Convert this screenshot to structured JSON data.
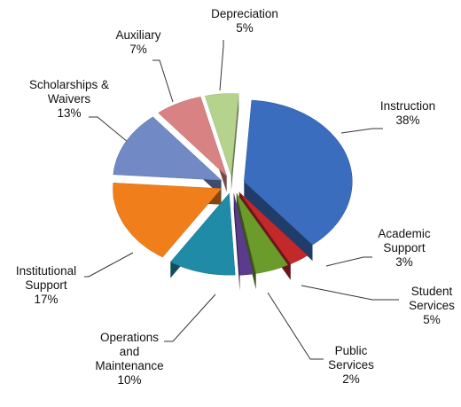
{
  "chart_data": {
    "type": "pie",
    "categories": [
      "Instruction",
      "Academic Support",
      "Student Services",
      "Public Services",
      "Operations and Maintenance",
      "Institutional Support",
      "Scholarships & Waivers",
      "Auxiliary",
      "Depreciation"
    ],
    "values": [
      38,
      3,
      5,
      2,
      10,
      17,
      13,
      7,
      5
    ],
    "value_labels": [
      "38%",
      "3%",
      "5%",
      "2%",
      "10%",
      "17%",
      "13%",
      "7%",
      "5%"
    ],
    "colors": [
      "#3a6dbd",
      "#c3282b",
      "#6b9b2b",
      "#5b3b8c",
      "#1f8ba6",
      "#f07f1b",
      "#7189c4",
      "#d98283",
      "#b6d38e"
    ]
  }
}
